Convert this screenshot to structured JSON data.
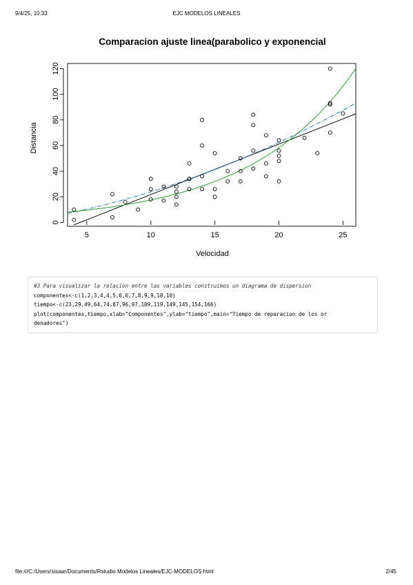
{
  "header": {
    "datetime": "9/4/25, 10:33",
    "title": "EJC MODELOS LINEALES"
  },
  "footer": {
    "path": "file:///C:/Users/sisaar/Documents/Rstudio Modelos Lineales/EJC-MODELOS.html",
    "page": "2/45"
  },
  "chart_data": {
    "type": "scatter",
    "title": "Comparacion ajuste linea(parabolico y exponencial",
    "xlabel": "Velocidad",
    "ylabel": "Distancia",
    "xlim": [
      3.5,
      26
    ],
    "ylim": [
      -3,
      124
    ],
    "xticks": [
      5,
      10,
      15,
      20,
      25
    ],
    "yticks": [
      0,
      20,
      40,
      60,
      80,
      100,
      120
    ],
    "points": [
      [
        4,
        2
      ],
      [
        4,
        10
      ],
      [
        7,
        4
      ],
      [
        7,
        22
      ],
      [
        8,
        16
      ],
      [
        9,
        10
      ],
      [
        10,
        18
      ],
      [
        10,
        26
      ],
      [
        10,
        34
      ],
      [
        11,
        17
      ],
      [
        11,
        28
      ],
      [
        12,
        14
      ],
      [
        12,
        20
      ],
      [
        12,
        24
      ],
      [
        12,
        28
      ],
      [
        13,
        26
      ],
      [
        13,
        34
      ],
      [
        13,
        34
      ],
      [
        13,
        46
      ],
      [
        14,
        26
      ],
      [
        14,
        36
      ],
      [
        14,
        60
      ],
      [
        14,
        80
      ],
      [
        15,
        20
      ],
      [
        15,
        26
      ],
      [
        15,
        54
      ],
      [
        16,
        32
      ],
      [
        16,
        40
      ],
      [
        17,
        32
      ],
      [
        17,
        40
      ],
      [
        17,
        50
      ],
      [
        18,
        42
      ],
      [
        18,
        56
      ],
      [
        18,
        76
      ],
      [
        18,
        84
      ],
      [
        19,
        36
      ],
      [
        19,
        46
      ],
      [
        19,
        68
      ],
      [
        20,
        32
      ],
      [
        20,
        48
      ],
      [
        20,
        52
      ],
      [
        20,
        56
      ],
      [
        20,
        64
      ],
      [
        22,
        66
      ],
      [
        23,
        54
      ],
      [
        24,
        70
      ],
      [
        24,
        92
      ],
      [
        24,
        93
      ],
      [
        24,
        120
      ],
      [
        25,
        85
      ]
    ],
    "series": [
      {
        "kind": "linear",
        "color": "#000000",
        "x": [
          4,
          26
        ],
        "y": [
          -1.85,
          84.7
        ]
      },
      {
        "kind": "parabolic",
        "color": "#1f77b4",
        "x": [
          3.5,
          26
        ],
        "y": [
          7.0,
          93.0
        ]
      },
      {
        "kind": "exponential",
        "color": "#2ca02c",
        "x": [
          3.5,
          26
        ],
        "y": [
          8.0,
          120.0
        ]
      }
    ]
  },
  "code": {
    "comment": "#3 Para visualizar la relacion entre las variables construimos un diagrama de dispersion",
    "lines": [
      "componentes<-c(1,2,3,4,4,5,6,6,7,8,9,9,10,10)",
      "tiempo<-c(23,29,49,64,74,87,96,97,109,119,149,145,154,166)",
      "plot(componentes,tiempo,xlab=\"Componentes\",ylab=\"tiempo\",main=\"Tiempo de reparacion de los or",
      "denadores\")"
    ]
  }
}
